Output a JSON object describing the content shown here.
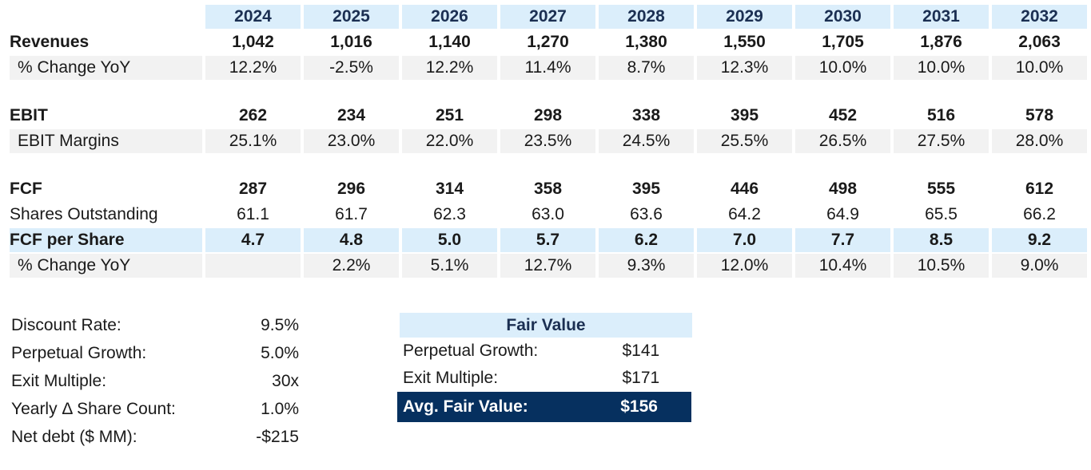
{
  "years": [
    "2024",
    "2025",
    "2026",
    "2027",
    "2028",
    "2029",
    "2030",
    "2031",
    "2032"
  ],
  "rows": {
    "revenues": {
      "label": "Revenues",
      "values": [
        "1,042",
        "1,016",
        "1,140",
        "1,270",
        "1,380",
        "1,550",
        "1,705",
        "1,876",
        "2,063"
      ]
    },
    "rev_change": {
      "label": "% Change YoY",
      "values": [
        "12.2%",
        "-2.5%",
        "12.2%",
        "11.4%",
        "8.7%",
        "12.3%",
        "10.0%",
        "10.0%",
        "10.0%"
      ]
    },
    "ebit": {
      "label": "EBIT",
      "values": [
        "262",
        "234",
        "251",
        "298",
        "338",
        "395",
        "452",
        "516",
        "578"
      ]
    },
    "ebit_margins": {
      "label": "EBIT Margins",
      "values": [
        "25.1%",
        "23.0%",
        "22.0%",
        "23.5%",
        "24.5%",
        "25.5%",
        "26.5%",
        "27.5%",
        "28.0%"
      ]
    },
    "fcf": {
      "label": "FCF",
      "values": [
        "287",
        "296",
        "314",
        "358",
        "395",
        "446",
        "498",
        "555",
        "612"
      ]
    },
    "shares": {
      "label": "Shares Outstanding",
      "values": [
        "61.1",
        "61.7",
        "62.3",
        "63.0",
        "63.6",
        "64.2",
        "64.9",
        "65.5",
        "66.2"
      ]
    },
    "fcf_per_share": {
      "label": "FCF per Share",
      "values": [
        "4.7",
        "4.8",
        "5.0",
        "5.7",
        "6.2",
        "7.0",
        "7.7",
        "8.5",
        "9.2"
      ]
    },
    "fcfps_change": {
      "label": "% Change YoY",
      "values": [
        "",
        "2.2%",
        "5.1%",
        "12.7%",
        "9.3%",
        "12.0%",
        "10.4%",
        "10.5%",
        "9.0%"
      ]
    }
  },
  "assumptions": [
    {
      "label": "Discount Rate:",
      "value": "9.5%"
    },
    {
      "label": "Perpetual Growth:",
      "value": "5.0%"
    },
    {
      "label": "Exit Multiple:",
      "value": "30x"
    },
    {
      "label": "Yearly Δ Share Count:",
      "value": "1.0%"
    },
    {
      "label": "Net debt ($ MM):",
      "value": "-$215"
    }
  ],
  "fair_value": {
    "title": "Fair Value",
    "perpetual_label": "Perpetual Growth:",
    "perpetual_value": "$141",
    "exit_label": "Exit Multiple:",
    "exit_value": "$171",
    "avg_label": "Avg. Fair Value:",
    "avg_value": "$156"
  },
  "colors": {
    "header_fill": "#dbeefb",
    "header_text": "#1b2f52",
    "shade": "#f2f2f2",
    "avg_fill": "#06305f"
  }
}
